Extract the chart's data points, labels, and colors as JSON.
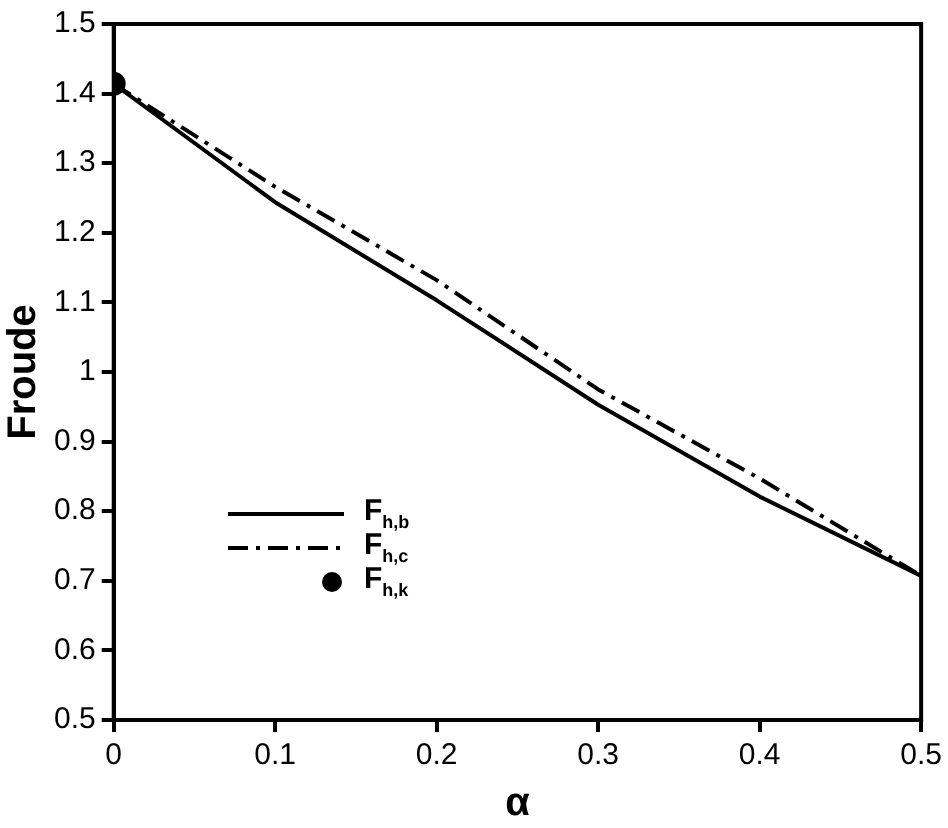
{
  "chart_data": {
    "type": "line",
    "xlabel": "α",
    "ylabel": "Froude",
    "xlim": [
      0,
      0.5
    ],
    "xticks": [
      0,
      0.1,
      0.2,
      0.3,
      0.4,
      0.5
    ],
    "ylim": [
      0.5,
      1.5
    ],
    "yticks": [
      0.5,
      0.6,
      0.7,
      0.8,
      0.9,
      1,
      1.1,
      1.2,
      1.3,
      1.4,
      1.5
    ],
    "grid": false,
    "legend": "left",
    "series": [
      {
        "name": "F$_{h,b}$",
        "type": "line",
        "line_style": "solid",
        "marker": "none",
        "color": "#000000",
        "x": [
          0,
          0.1,
          0.2,
          0.3,
          0.4,
          0.5
        ],
        "values": [
          1.414,
          1.244,
          1.103,
          0.953,
          0.821,
          0.707
        ]
      },
      {
        "name": "F$_{h,c}$",
        "type": "line",
        "line_style": "dashed",
        "marker": "none",
        "color": "#000000",
        "x": [
          0,
          0.1,
          0.2,
          0.3,
          0.4,
          0.5
        ],
        "values": [
          1.414,
          1.266,
          1.132,
          0.975,
          0.847,
          0.707
        ]
      },
      {
        "name": "F$_{h,k}$",
        "type": "scatter",
        "marker": "circle",
        "color": "#000000",
        "x": [
          0
        ],
        "values": [
          1.414
        ]
      }
    ]
  }
}
